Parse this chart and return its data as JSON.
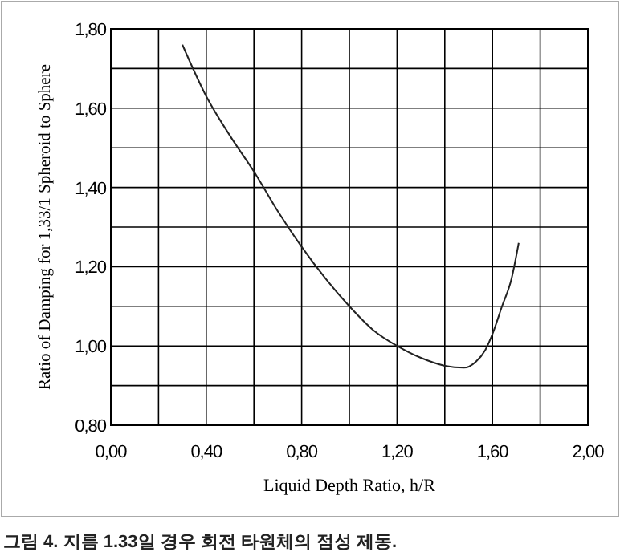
{
  "chart_data": {
    "type": "line",
    "xlabel": "Liquid Depth Ratio, h/R",
    "ylabel": "Ratio of Damping for 1,33/1 Spheroid to Sphere",
    "annotations": [
      "그림 4. 지름 1.33일 경우 회전 타원체의 점성 제동."
    ],
    "x": [
      0.3,
      0.4,
      0.5,
      0.6,
      0.7,
      0.8,
      0.9,
      1.0,
      1.1,
      1.2,
      1.3,
      1.4,
      1.48,
      1.53,
      1.57,
      1.6,
      1.64,
      1.68,
      1.71
    ],
    "series": [
      {
        "color": "#222222",
        "values": [
          1.76,
          1.63,
          1.53,
          1.44,
          1.34,
          1.25,
          1.17,
          1.1,
          1.04,
          1.0,
          0.97,
          0.95,
          0.945,
          0.96,
          0.99,
          1.03,
          1.1,
          1.17,
          1.26
        ]
      }
    ],
    "xlim": [
      0,
      2
    ],
    "ylim": [
      0.8,
      1.8
    ],
    "xticks": [
      {
        "value": 0,
        "label": "0,00"
      },
      {
        "value": 0.2,
        "label": null
      },
      {
        "value": 0.4,
        "label": "0,40"
      },
      {
        "value": 0.6,
        "label": null
      },
      {
        "value": 0.8,
        "label": "0,80"
      },
      {
        "value": 1.0,
        "label": null
      },
      {
        "value": 1.2,
        "label": "1,20"
      },
      {
        "value": 1.4,
        "label": null
      },
      {
        "value": 1.6,
        "label": "1,60"
      },
      {
        "value": 1.8,
        "label": null
      },
      {
        "value": 2.0,
        "label": "2,00"
      }
    ],
    "yticks": [
      {
        "value": 0.8,
        "label": "0,80"
      },
      {
        "value": 0.9,
        "label": null
      },
      {
        "value": 1.0,
        "label": "1,00"
      },
      {
        "value": 1.1,
        "label": null
      },
      {
        "value": 1.2,
        "label": "1,20"
      },
      {
        "value": 1.3,
        "label": null
      },
      {
        "value": 1.4,
        "label": "1,40"
      },
      {
        "value": 1.5,
        "label": null
      },
      {
        "value": 1.6,
        "label": "1,60"
      },
      {
        "value": 1.7,
        "label": null
      },
      {
        "value": 1.8,
        "label": "1,80"
      }
    ],
    "grid": true,
    "marker": "none",
    "line_style": "solid"
  }
}
